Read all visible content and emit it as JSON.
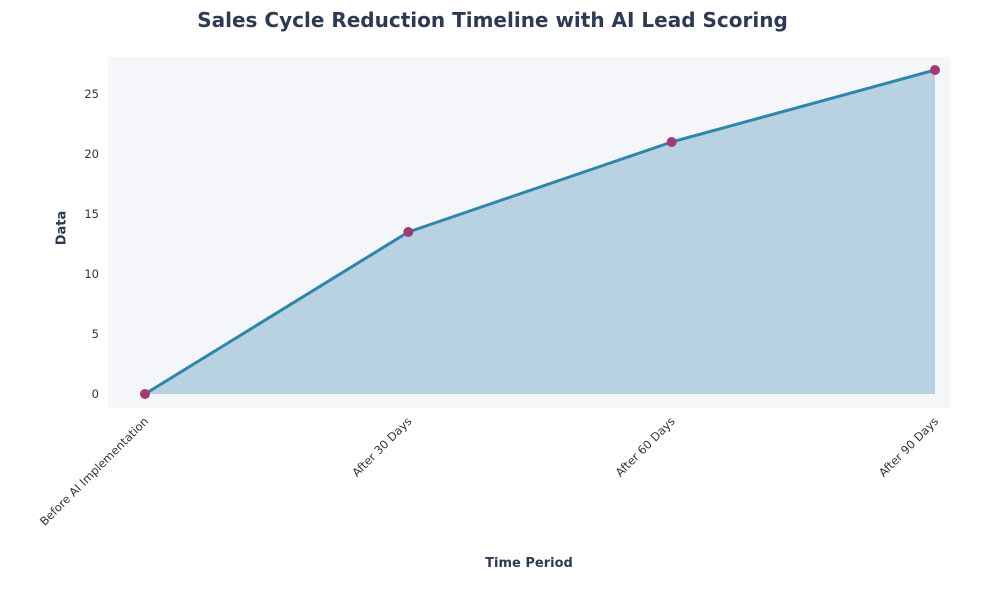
{
  "chart_data": {
    "type": "area",
    "title": "Sales Cycle Reduction Timeline with AI Lead Scoring",
    "xlabel": "Time Period",
    "ylabel": "Data",
    "categories": [
      "Before AI Implementation",
      "After 30 Days",
      "After 60 Days",
      "After 90 Days"
    ],
    "values": [
      0,
      13.5,
      21,
      27
    ],
    "yticks": [
      0,
      5,
      10,
      15,
      20,
      25
    ],
    "ylim": [
      0,
      28
    ],
    "grid": false,
    "legend": "none",
    "colors": {
      "line": "#2e86ab",
      "marker": "#a23b72",
      "area_fill": "#b8d2e2",
      "plot_background": "#f4f6f9",
      "title_text": "#2e3a54",
      "axis_text": "#333333"
    }
  }
}
